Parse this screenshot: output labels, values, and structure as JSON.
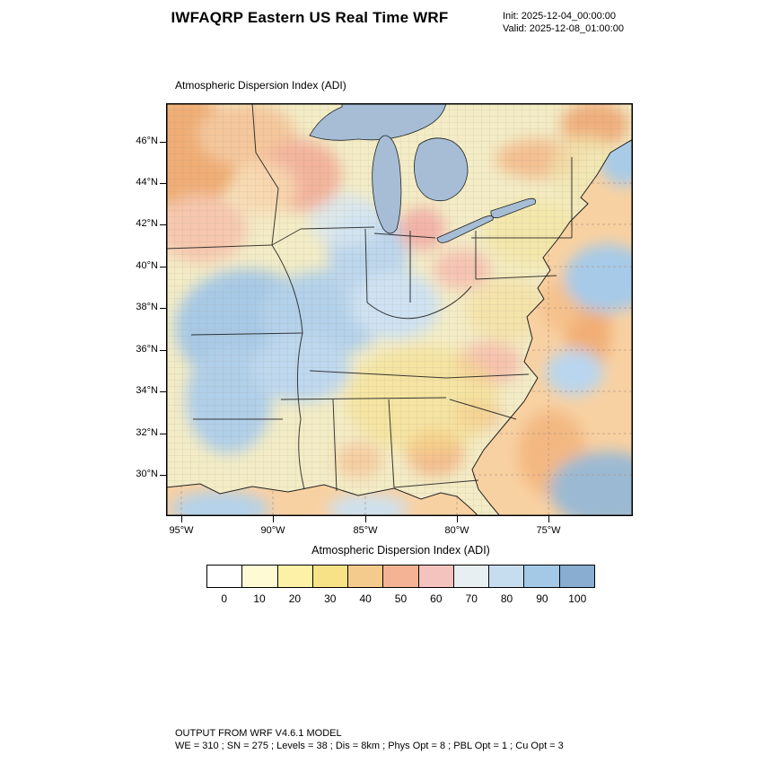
{
  "header": {
    "title": "IWFAQRP Eastern US Real Time WRF",
    "init_label": "Init: 2025-12-04_00:00:00",
    "valid_label": "Valid: 2025-12-08_01:00:00"
  },
  "map": {
    "field_title": "Atmospheric Dispersion Index   (ADI)",
    "lat_ticks": [
      "46°N",
      "44°N",
      "42°N",
      "40°N",
      "38°N",
      "36°N",
      "34°N",
      "32°N",
      "30°N"
    ],
    "lon_ticks": [
      "95°W",
      "90°W",
      "85°W",
      "80°W",
      "75°W"
    ]
  },
  "colorbar": {
    "title": "Atmospheric Dispersion Index  (ADI)",
    "tick_labels": [
      "0",
      "10",
      "20",
      "30",
      "40",
      "50",
      "60",
      "70",
      "80",
      "90",
      "100"
    ],
    "colors": [
      "#ffffff",
      "#fefbd4",
      "#fcf1a6",
      "#f8e287",
      "#f5cb8d",
      "#f3b394",
      "#f4c3bd",
      "#e7eff2",
      "#c6ddf0",
      "#a3c9e6",
      "#88add0"
    ]
  },
  "footer": {
    "line1": "OUTPUT FROM WRF V4.6.1 MODEL",
    "line2": "WE = 310 ; SN = 275 ; Levels = 38 ; Dis = 8km ; Phys Opt = 8 ; PBL Opt = 1 ; Cu Opt = 3"
  }
}
